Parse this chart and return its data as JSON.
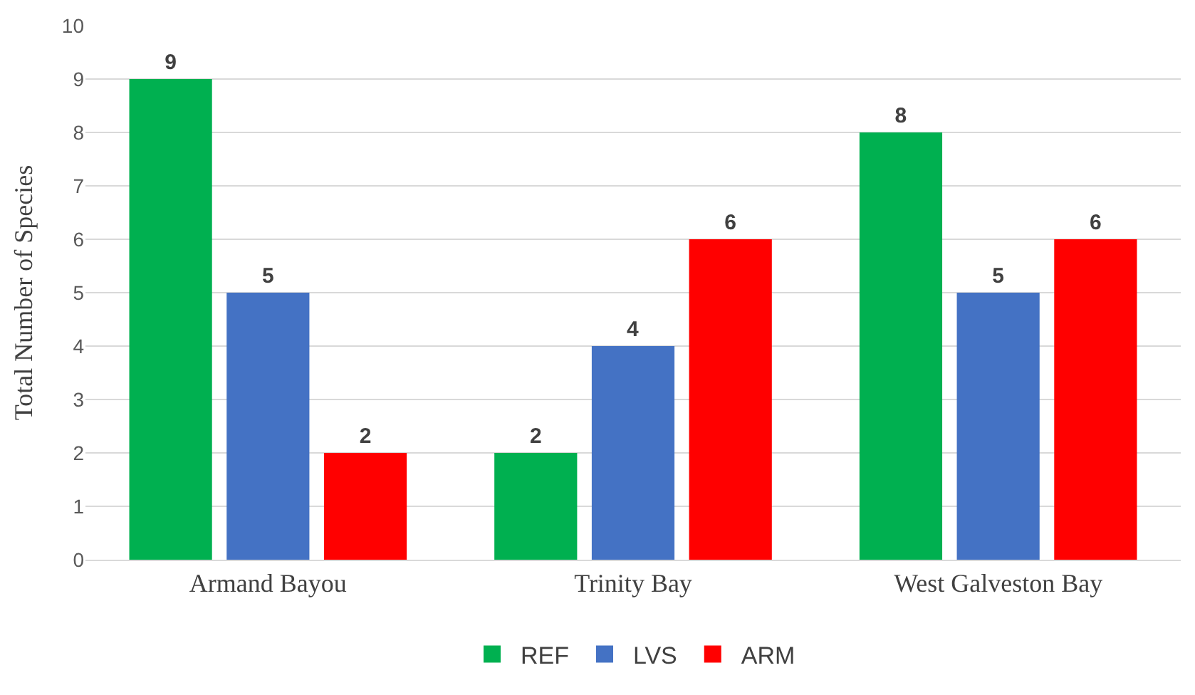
{
  "chart_data": {
    "type": "bar",
    "ylabel": "Total Number of Species",
    "categories": [
      "Armand Bayou",
      "Trinity Bay",
      "West Galveston Bay"
    ],
    "series": [
      {
        "name": "REF",
        "color": "#00b050",
        "values": [
          9,
          2,
          8
        ]
      },
      {
        "name": "LVS",
        "color": "#4472c4",
        "values": [
          5,
          4,
          5
        ]
      },
      {
        "name": "ARM",
        "color": "#ff0000",
        "values": [
          2,
          6,
          6
        ]
      }
    ],
    "ylim": [
      0,
      10
    ],
    "yticks": [
      0,
      1,
      2,
      3,
      4,
      5,
      6,
      7,
      8,
      9,
      10
    ],
    "grid": "y",
    "legend": "bottom",
    "data_labels": true
  }
}
